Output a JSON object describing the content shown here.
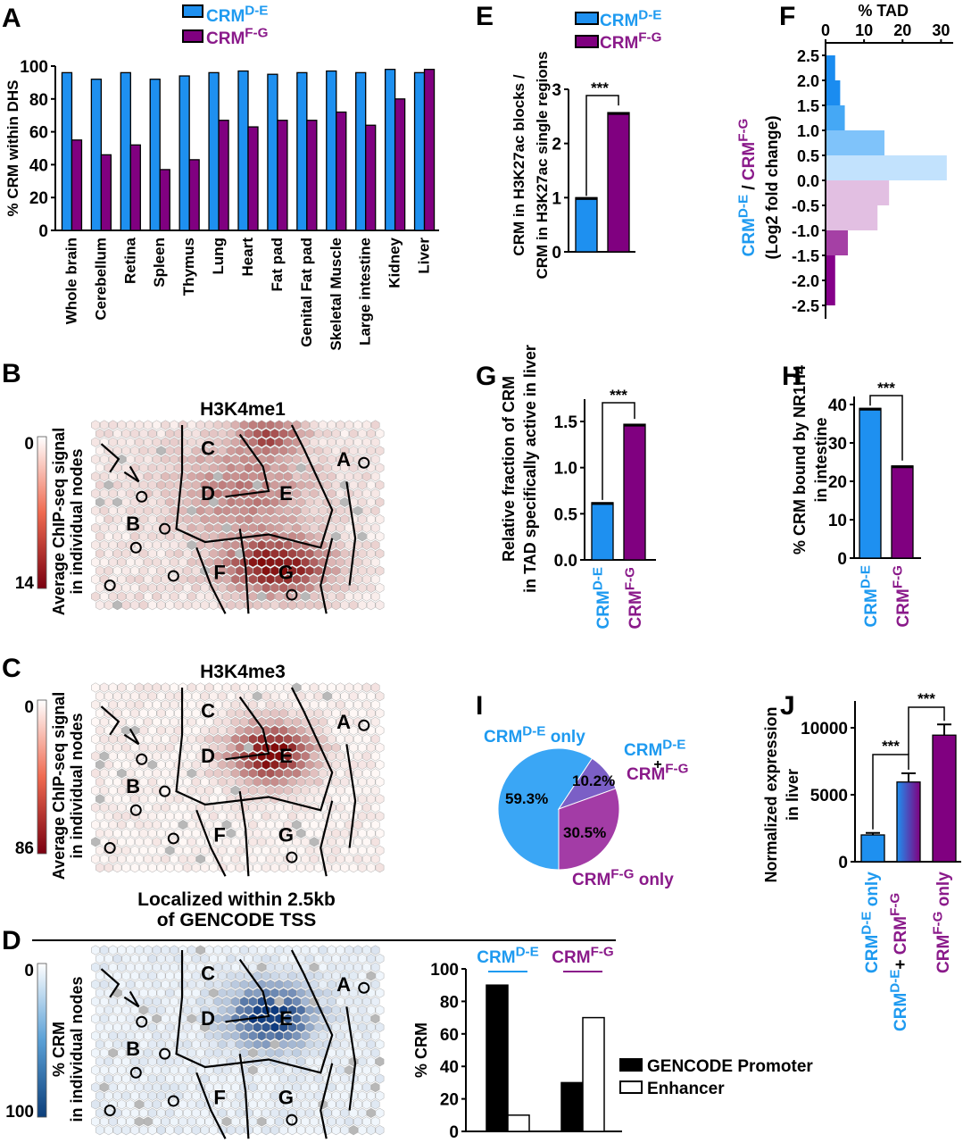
{
  "colors": {
    "de": "#1e90f0",
    "fg": "#800080",
    "de_label": "#1e9af0",
    "fg_label": "#8a1a8a",
    "black": "#000000",
    "white": "#ffffff"
  },
  "legend_labels": {
    "de_base": "CRM",
    "de_sup": "D-E",
    "fg_base": "CRM",
    "fg_sup": "F-G"
  },
  "chart_data": [
    {
      "id": "A",
      "panel_letter": "A",
      "type": "bar",
      "title": "",
      "xlabel": "",
      "ylabel": "% CRM within DHS",
      "ylim": [
        0,
        100
      ],
      "yticks": [
        0,
        20,
        40,
        60,
        80,
        100
      ],
      "categories": [
        "Whole brain",
        "Cerebellum",
        "Retina",
        "Spleen",
        "Thymus",
        "Lung",
        "Heart",
        "Fat pad",
        "Genital Fat pad",
        "Skeletal Muscle",
        "Large intestine",
        "Kidney",
        "Liver"
      ],
      "series": [
        {
          "name": "CRM D-E",
          "color": "#1e90f0",
          "values": [
            96,
            92,
            96,
            92,
            94,
            96,
            97,
            95,
            96,
            97,
            96,
            98,
            96
          ]
        },
        {
          "name": "CRM F-G",
          "color": "#800080",
          "values": [
            55,
            46,
            52,
            37,
            43,
            67,
            63,
            67,
            67,
            72,
            64,
            80,
            98
          ]
        }
      ],
      "legend": "top-center",
      "grid": false
    },
    {
      "id": "E",
      "panel_letter": "E",
      "type": "bar",
      "ylabel_lines": [
        "CRM in H3K27ac blocks /",
        "CRM in H3K27ac single regions"
      ],
      "ylim": [
        0,
        3
      ],
      "yticks": [
        0,
        1,
        2,
        3
      ],
      "categories": [
        "CRM D-E",
        "CRM F-G"
      ],
      "values": [
        1.0,
        2.57
      ],
      "colors": [
        "#1e90f0",
        "#800080"
      ],
      "significance": "***",
      "legend": "top-right",
      "grid": false
    },
    {
      "id": "F",
      "panel_letter": "F",
      "type": "bar",
      "orientation": "horizontal",
      "xlabel": "% TAD",
      "ylabel_parts": [
        "CRM",
        "D-E",
        " / ",
        "CRM",
        "F-G"
      ],
      "ylabel_line2": "(Log2 fold change)",
      "xlim": [
        0,
        32
      ],
      "xticks": [
        0,
        10,
        20,
        30
      ],
      "yticks": [
        "2.5",
        "2.0",
        "1.5",
        "1.0",
        "0.5",
        "0.0",
        "-0.5",
        "-1.0",
        "-1.5",
        "-2.0",
        "-2.5"
      ],
      "bins": [
        {
          "from": 2.5,
          "to": 2.0,
          "value": 2.5,
          "color": "#1a8cf0"
        },
        {
          "from": 2.0,
          "to": 1.5,
          "value": 3.8,
          "color": "#1a8cf0"
        },
        {
          "from": 1.5,
          "to": 1.0,
          "value": 5.0,
          "color": "#45a8f5"
        },
        {
          "from": 1.0,
          "to": 0.5,
          "value": 15.3,
          "color": "#7fc3fa"
        },
        {
          "from": 0.5,
          "to": 0.0,
          "value": 31.5,
          "color": "#c2e2fd"
        },
        {
          "from": 0.0,
          "to": -0.5,
          "value": 16.5,
          "color": "#e2bfe2"
        },
        {
          "from": -0.5,
          "to": -1.0,
          "value": 13.5,
          "color": "#e2bfe2"
        },
        {
          "from": -1.0,
          "to": -1.5,
          "value": 5.8,
          "color": "#a540a5"
        },
        {
          "from": -1.5,
          "to": -2.0,
          "value": 2.5,
          "color": "#86008a"
        },
        {
          "from": -2.0,
          "to": -2.5,
          "value": 2.5,
          "color": "#86008a"
        }
      ]
    },
    {
      "id": "G",
      "panel_letter": "G",
      "type": "bar",
      "ylabel_lines": [
        "Relative fraction of CRM",
        "in TAD specifically active in liver"
      ],
      "ylim": [
        0,
        1.75
      ],
      "yticks": [
        "0.0",
        "0.5",
        "1.0",
        "1.5"
      ],
      "ytick_values": [
        0,
        0.5,
        1.0,
        1.5
      ],
      "categories": [
        "CRM D-E",
        "CRM F-G"
      ],
      "values": [
        0.62,
        1.47
      ],
      "colors": [
        "#1e90f0",
        "#800080"
      ],
      "significance": "***"
    },
    {
      "id": "H",
      "panel_letter": "H",
      "type": "bar",
      "ylabel_lines": [
        "% CRM bound by NR1H4",
        "in intestine"
      ],
      "ylim": [
        0,
        40
      ],
      "yticks": [
        0,
        10,
        20,
        30,
        40
      ],
      "categories": [
        "CRM D-E",
        "CRM F-G"
      ],
      "values": [
        39,
        24
      ],
      "colors": [
        "#1e90f0",
        "#800080"
      ],
      "significance": "***"
    },
    {
      "id": "I",
      "panel_letter": "I",
      "type": "pie",
      "slices": [
        {
          "label": "CRM D-E only",
          "value": 59.3,
          "text": "59.3%",
          "color": "#3aa6f5"
        },
        {
          "label": "CRM D-E + CRM F-G",
          "value": 10.2,
          "text": "10.2%",
          "color": "#7b5fc6"
        },
        {
          "label": "CRM F-G only",
          "value": 30.5,
          "text": "30.5%",
          "color": "#a33ca6"
        }
      ],
      "labels": {
        "de_only": {
          "base": "CRM",
          "sup": "D-E",
          "suffix": " only"
        },
        "both_top": {
          "base": "CRM",
          "sup": "D-E"
        },
        "plus": "+",
        "both_bottom": {
          "base": "CRM",
          "sup": "F-G"
        },
        "fg_only": {
          "base": "CRM",
          "sup": "F-G",
          "suffix": " only"
        }
      }
    },
    {
      "id": "J",
      "panel_letter": "J",
      "type": "bar",
      "ylabel_lines": [
        "Normalized expression",
        "in liver"
      ],
      "ylim": [
        0,
        12000
      ],
      "yticks": [
        0,
        5000,
        10000
      ],
      "categories": [
        "CRM D-E only",
        "CRM D-E + CRM F-G",
        "CRM F-G only"
      ],
      "values": [
        2000,
        5950,
        9450
      ],
      "errors": [
        150,
        650,
        800
      ],
      "colors": [
        "#1e90f0",
        "gradient",
        "#800080"
      ],
      "significance": [
        "***",
        "***"
      ]
    },
    {
      "id": "B",
      "panel_letter": "B",
      "type": "heatmap",
      "title": "H3K4me1",
      "colorbar_label_lines": [
        "Average ChIP-seq signal",
        "in individual nodes"
      ],
      "colorbar_range": [
        0,
        14
      ],
      "colorbar_min_label": "0",
      "colorbar_max_label": "14",
      "palette": "reds",
      "region_labels": [
        "A",
        "B",
        "C",
        "D",
        "E",
        "F",
        "G"
      ]
    },
    {
      "id": "C",
      "panel_letter": "C",
      "type": "heatmap",
      "title": "H3K4me3",
      "colorbar_label_lines": [
        "Average ChIP-seq signal",
        "in individual nodes"
      ],
      "colorbar_range": [
        0,
        86
      ],
      "colorbar_min_label": "0",
      "colorbar_max_label": "86",
      "palette": "reds",
      "region_labels": [
        "A",
        "B",
        "C",
        "D",
        "E",
        "F",
        "G"
      ]
    },
    {
      "id": "D",
      "panel_letter": "D",
      "type": "heatmap",
      "title_lines": [
        "Localized within 2.5kb",
        "of GENCODE TSS"
      ],
      "colorbar_label_lines": [
        "% CRM",
        "in individual nodes"
      ],
      "colorbar_range": [
        0,
        100
      ],
      "colorbar_min_label": "0",
      "colorbar_max_label": "100",
      "palette": "blues",
      "region_labels": [
        "A",
        "B",
        "C",
        "D",
        "E",
        "F",
        "G"
      ]
    },
    {
      "id": "D2",
      "type": "bar",
      "ylabel": "% CRM",
      "ylim": [
        0,
        100
      ],
      "yticks": [
        0,
        20,
        40,
        60,
        80,
        100
      ],
      "groups": [
        "CRM D-E",
        "CRM F-G"
      ],
      "group_labels": [
        {
          "base": "CRM",
          "sup": "D-E"
        },
        {
          "base": "CRM",
          "sup": "F-G"
        }
      ],
      "series": [
        {
          "name": "GENCODE Promoter",
          "fill": "#000000",
          "values": [
            90,
            30
          ]
        },
        {
          "name": "Enhancer",
          "fill": "#ffffff",
          "values": [
            10,
            70
          ]
        }
      ],
      "legend": "right"
    }
  ]
}
